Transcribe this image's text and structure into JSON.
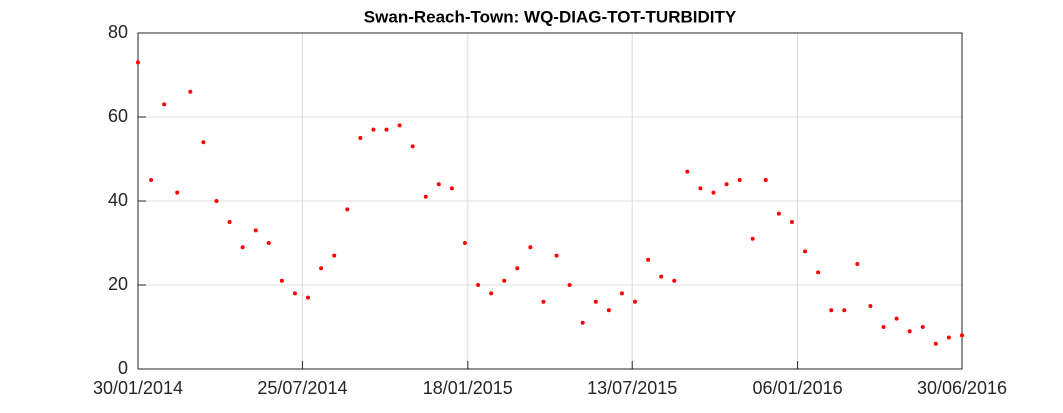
{
  "chart_data": {
    "type": "scatter",
    "title": "Swan-Reach-Town: WQ-DIAG-TOT-TURBIDITY",
    "x": [
      "30/01/2014",
      "13/02/2014",
      "27/02/2014",
      "13/03/2014",
      "27/03/2014",
      "10/04/2014",
      "24/04/2014",
      "08/05/2014",
      "22/05/2014",
      "05/06/2014",
      "19/06/2014",
      "03/07/2014",
      "17/07/2014",
      "31/07/2014",
      "14/08/2014",
      "28/08/2014",
      "11/09/2014",
      "25/09/2014",
      "09/10/2014",
      "23/10/2014",
      "06/11/2014",
      "20/11/2014",
      "04/12/2014",
      "18/12/2014",
      "01/01/2015",
      "15/01/2015",
      "29/01/2015",
      "12/02/2015",
      "26/02/2015",
      "12/03/2015",
      "26/03/2015",
      "09/04/2015",
      "23/04/2015",
      "07/05/2015",
      "21/05/2015",
      "04/06/2015",
      "18/06/2015",
      "02/07/2015",
      "16/07/2015",
      "30/07/2015",
      "13/08/2015",
      "27/08/2015",
      "10/09/2015",
      "24/09/2015",
      "08/10/2015",
      "22/10/2015",
      "05/11/2015",
      "19/11/2015",
      "03/12/2015",
      "17/12/2015",
      "31/12/2015",
      "14/01/2016",
      "28/01/2016",
      "11/02/2016",
      "25/02/2016",
      "10/03/2016",
      "24/03/2016",
      "07/04/2016",
      "21/04/2016",
      "05/05/2016",
      "19/05/2016",
      "02/06/2016",
      "16/06/2016",
      "30/06/2016"
    ],
    "values": [
      73,
      45,
      63,
      42,
      66,
      54,
      40,
      35,
      29,
      33,
      30,
      21,
      18,
      17,
      24,
      27,
      38,
      55,
      57,
      57,
      58,
      53,
      41,
      44,
      43,
      30,
      20,
      18,
      21,
      24,
      29,
      16,
      27,
      20,
      11,
      16,
      14,
      18,
      16,
      26,
      22,
      21,
      47,
      43,
      42,
      44,
      45,
      31,
      45,
      37,
      35,
      28,
      23,
      14,
      14,
      25,
      15,
      10,
      12,
      9,
      10,
      6,
      7.5,
      8
    ],
    "color": "#ff0000",
    "xlim": [
      "30/01/2014",
      "30/06/2016"
    ],
    "xticks": [
      "30/01/2014",
      "25/07/2014",
      "18/01/2015",
      "13/07/2015",
      "06/01/2016",
      "30/06/2016"
    ],
    "ylim": [
      0,
      80
    ],
    "yticks": [
      0,
      20,
      40,
      60,
      80
    ],
    "grid": true
  }
}
